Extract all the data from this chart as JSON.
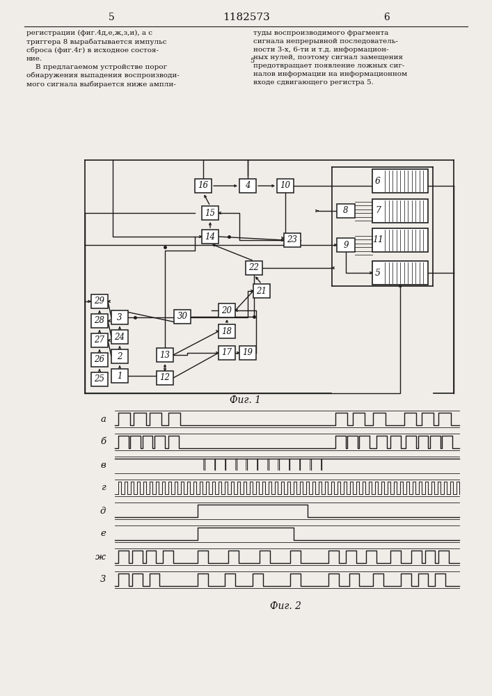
{
  "title": "1182573",
  "page_left": "5",
  "page_right": "6",
  "text_left": "регистрации (фиг.4д,е,ж,з,и), а с\nтриггера 8 вырабатывается импульс\nсброса (фиг.4г) в исходное состоя-\nние.\n    В предлагаемом устройстве порог\nобнаружения выпадения воспроизводи-\nмого сигнала выбирается ниже ампли-",
  "text_right": "туды воспроизводимого фрагмента\nсигнала непрерывной последователь-\nности 3-х, 6-ти и т.д. информацион-\nных нулей, поэтому сигнал замещения\nпредотвращает появление ложных сиг-\nналов информации на информационном\nвходе сдвигающего регистра 5.",
  "line5_marker": "5",
  "fig1_label": "Фиг. 1",
  "fig2_label": "Фиг. 2",
  "waveform_labels": [
    "а",
    "б",
    "в",
    "г",
    "д",
    "е",
    "ж",
    "3"
  ],
  "bg_color": "#f0ede8",
  "line_color": "#1a1a1a"
}
